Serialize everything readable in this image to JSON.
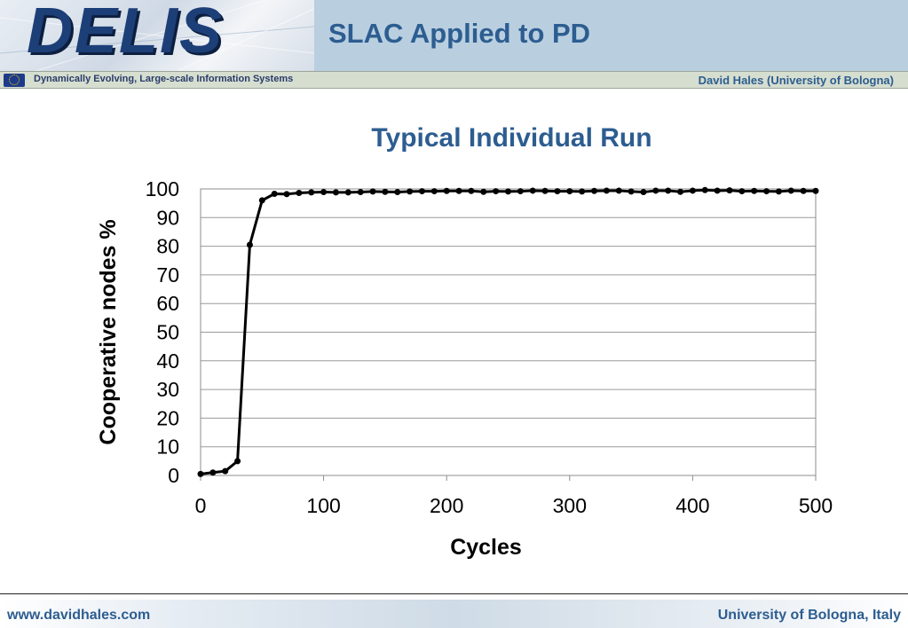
{
  "header": {
    "logo_text": "DELIS",
    "slide_title": "SLAC Applied to PD",
    "subtitle_left": "Dynamically Evolving, Large-scale Information Systems",
    "subtitle_right": "David Hales (University of Bologna)",
    "eu_flag_icon": "eu-flag-icon"
  },
  "chart_data": {
    "type": "line",
    "title": "Typical Individual Run",
    "xlabel": "Cycles",
    "ylabel": "Cooperative nodes %",
    "xlim": [
      0,
      500
    ],
    "ylim": [
      0,
      100
    ],
    "xticks": [
      0,
      100,
      200,
      300,
      400,
      500
    ],
    "yticks": [
      0,
      10,
      20,
      30,
      40,
      50,
      60,
      70,
      80,
      90,
      100
    ],
    "grid": "horizontal",
    "legend": "none",
    "line_color": "#000000",
    "series": [
      {
        "x": [
          0,
          10,
          20,
          30,
          40,
          50,
          60,
          70,
          80,
          90,
          100,
          110,
          120,
          130,
          140,
          150,
          160,
          170,
          180,
          190,
          200,
          210,
          220,
          230,
          240,
          250,
          260,
          270,
          280,
          290,
          300,
          310,
          320,
          330,
          340,
          350,
          360,
          370,
          380,
          390,
          400,
          410,
          420,
          430,
          440,
          450,
          460,
          470,
          480,
          490,
          500
        ],
        "values": [
          0.5,
          1,
          1.5,
          5,
          80.5,
          96,
          98.3,
          98.2,
          98.6,
          98.8,
          98.9,
          98.8,
          98.8,
          98.9,
          99.1,
          99,
          98.9,
          99.1,
          99.2,
          99.2,
          99.3,
          99.3,
          99.3,
          99,
          99.2,
          99.1,
          99.2,
          99.4,
          99.3,
          99.2,
          99.2,
          99.1,
          99.3,
          99.4,
          99.4,
          99.1,
          98.9,
          99.4,
          99.4,
          99,
          99.4,
          99.6,
          99.4,
          99.5,
          99.2,
          99.3,
          99.2,
          99.1,
          99.4,
          99.3,
          99.3
        ]
      }
    ]
  },
  "footer": {
    "left": "www.davidhales.com",
    "right": "University of Bologna, Italy"
  }
}
